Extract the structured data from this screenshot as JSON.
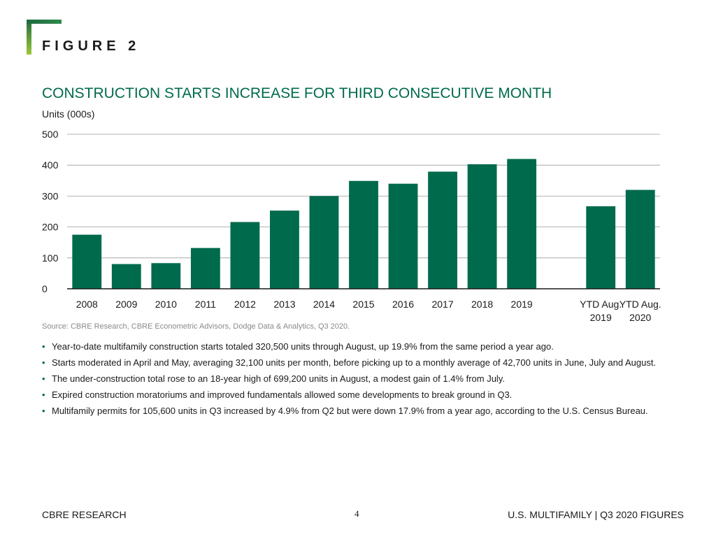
{
  "figure_label": "FIGURE 2",
  "title": "CONSTRUCTION STARTS INCREASE FOR THIRD CONSECUTIVE MONTH",
  "source": "Source: CBRE Research, CBRE Econometric Advisors, Dodge Data & Analytics, Q3 2020.",
  "bullets": [
    "Year-to-date multifamily construction starts totaled 320,500 units through August, up 19.9% from the same period a year ago.",
    "Starts moderated in April and May, averaging 32,100 units per month, before picking up to a monthly average of 42,700 units in June, July and August.",
    "The under-construction total rose to an 18-year high of 699,200 units in August, a modest gain of 1.4% from July.",
    "Expired construction moratoriums and improved fundamentals allowed some developments to break ground in Q3.",
    "Multifamily permits for 105,600 units in Q3 increased by 4.9% from Q2 but were down 17.9% from a year ago, according to the U.S. Census Bureau."
  ],
  "footer": {
    "left": "CBRE RESEARCH",
    "page": "4",
    "right": "U.S. MULTIFAMILY | Q3 2020 FIGURES"
  },
  "colors": {
    "bar": "#006a4d",
    "title": "#006a4d",
    "accent_light": "#9bc93c"
  },
  "chart_data": {
    "type": "bar",
    "title": "CONSTRUCTION STARTS INCREASE FOR THIRD CONSECUTIVE MONTH",
    "ylabel": "Units (000s)",
    "xlabel": "",
    "ylim": [
      0,
      500
    ],
    "yticks": [
      0,
      100,
      200,
      300,
      400,
      500
    ],
    "grid": true,
    "categories": [
      "2008",
      "2009",
      "2010",
      "2011",
      "2012",
      "2013",
      "2014",
      "2015",
      "2016",
      "2017",
      "2018",
      "2019",
      "",
      "YTD Aug. 2019",
      "YTD Aug. 2020"
    ],
    "category_lines": [
      [
        "2008"
      ],
      [
        "2009"
      ],
      [
        "2010"
      ],
      [
        "2011"
      ],
      [
        "2012"
      ],
      [
        "2013"
      ],
      [
        "2014"
      ],
      [
        "2015"
      ],
      [
        "2016"
      ],
      [
        "2017"
      ],
      [
        "2018"
      ],
      [
        "2019"
      ],
      [],
      [
        "YTD Aug.",
        "2019"
      ],
      [
        "YTD Aug.",
        "2020"
      ]
    ],
    "values": [
      175,
      80,
      83,
      132,
      216,
      253,
      300,
      349,
      340,
      379,
      403,
      420,
      null,
      267,
      320
    ]
  }
}
